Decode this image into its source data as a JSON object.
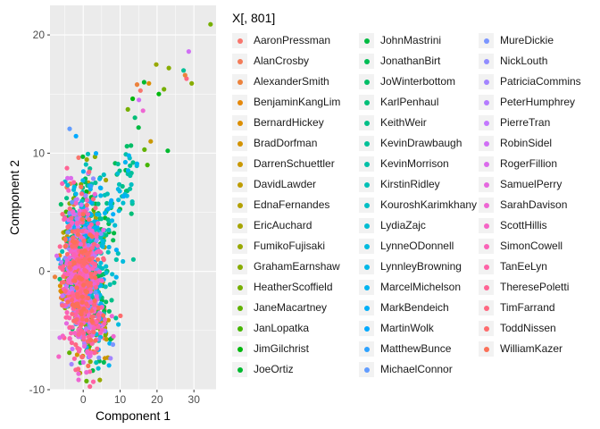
{
  "chart_data": {
    "type": "scatter",
    "xlabel": "Component 1",
    "ylabel": "Component 2",
    "xlim": [
      -9,
      36
    ],
    "ylim": [
      -10,
      22.5
    ],
    "x_ticks": [
      0,
      10,
      20,
      30
    ],
    "y_ticks": [
      -10,
      0,
      10,
      20
    ],
    "grid": true,
    "legend_title": "X[, 801]",
    "legend_position": "right",
    "series": [
      {
        "name": "AaronPressman",
        "color": "#F8766D"
      },
      {
        "name": "AlanCrosby",
        "color": "#F37C59"
      },
      {
        "name": "AlexanderSmith",
        "color": "#EC823C"
      },
      {
        "name": "BenjaminKangLim",
        "color": "#E5880A"
      },
      {
        "name": "BernardHickey",
        "color": "#DC8E00"
      },
      {
        "name": "BradDorfman",
        "color": "#D39200"
      },
      {
        "name": "DarrenSchuettler",
        "color": "#C99800"
      },
      {
        "name": "DavidLawder",
        "color": "#BE9C00"
      },
      {
        "name": "EdnaFernandes",
        "color": "#B3A000"
      },
      {
        "name": "EricAuchard",
        "color": "#A6A400"
      },
      {
        "name": "FumikoFujisaki",
        "color": "#98A800"
      },
      {
        "name": "GrahamEarnshaw",
        "color": "#88AC00"
      },
      {
        "name": "HeatherScoffield",
        "color": "#76AF00"
      },
      {
        "name": "JaneMacartney",
        "color": "#61B200"
      },
      {
        "name": "JanLopatka",
        "color": "#45B500"
      },
      {
        "name": "JimGilchrist",
        "color": "#00B70C"
      },
      {
        "name": "JoeOrtiz",
        "color": "#00B92E"
      },
      {
        "name": "JohnMastrini",
        "color": "#00BA42"
      },
      {
        "name": "JonathanBirt",
        "color": "#00BC55"
      },
      {
        "name": "JoWinterbottom",
        "color": "#00BD66"
      },
      {
        "name": "KarlPenhaul",
        "color": "#00BE77"
      },
      {
        "name": "KeithWeir",
        "color": "#00BF87"
      },
      {
        "name": "KevinDrawbaugh",
        "color": "#00C097"
      },
      {
        "name": "KevinMorrison",
        "color": "#00C0A7"
      },
      {
        "name": "KirstinRidley",
        "color": "#00C0B6"
      },
      {
        "name": "KouroshKarimkhany",
        "color": "#00BFC4"
      },
      {
        "name": "LydiaZajc",
        "color": "#00BDD1"
      },
      {
        "name": "LynneODonnell",
        "color": "#00BBDE"
      },
      {
        "name": "LynnleyBrowning",
        "color": "#00B8E7"
      },
      {
        "name": "MarcelMichelson",
        "color": "#00B4F0"
      },
      {
        "name": "MarkBendeich",
        "color": "#00AFF8"
      },
      {
        "name": "MartinWolk",
        "color": "#00A9FF"
      },
      {
        "name": "MatthewBunce",
        "color": "#2EA2FF"
      },
      {
        "name": "MichaelConnor",
        "color": "#619CFF"
      },
      {
        "name": "MureDickie",
        "color": "#7B95FF"
      },
      {
        "name": "NickLouth",
        "color": "#918DFF"
      },
      {
        "name": "PatriciaCommins",
        "color": "#A385FF"
      },
      {
        "name": "PeterHumphrey",
        "color": "#B47CFF"
      },
      {
        "name": "PierreTran",
        "color": "#C377FF"
      },
      {
        "name": "RobinSidel",
        "color": "#D06FF5"
      },
      {
        "name": "RogerFillion",
        "color": "#DB6BEB"
      },
      {
        "name": "SamuelPerry",
        "color": "#E568DF"
      },
      {
        "name": "SarahDavison",
        "color": "#EE66D3"
      },
      {
        "name": "ScottHillis",
        "color": "#F564C5"
      },
      {
        "name": "SimonCowell",
        "color": "#FA62B6"
      },
      {
        "name": "TanEeLyn",
        "color": "#FE62A6"
      },
      {
        "name": "TheresePoletti",
        "color": "#FF6494"
      },
      {
        "name": "TimFarrand",
        "color": "#FF6881"
      },
      {
        "name": "ToddNissen",
        "color": "#FE6C6D"
      },
      {
        "name": "WilliamKazer",
        "color": "#FB7058"
      }
    ],
    "outlier_points": [
      {
        "x": 34.5,
        "y": 20.9,
        "series": "HeatherScoffield"
      },
      {
        "x": 28.6,
        "y": 18.6,
        "series": "RobinSidel"
      },
      {
        "x": 27.2,
        "y": 17.0,
        "series": "KevinDrawbaugh"
      },
      {
        "x": 28.0,
        "y": 16.3,
        "series": "TimFarrand"
      },
      {
        "x": 29.4,
        "y": 15.9,
        "series": "GrahamEarnshaw"
      },
      {
        "x": 27.6,
        "y": 16.6,
        "series": "AlexanderSmith"
      },
      {
        "x": 23.2,
        "y": 17.2,
        "series": "GrahamEarnshaw"
      },
      {
        "x": 21.9,
        "y": 15.4,
        "series": "HeatherScoffield"
      },
      {
        "x": 20.5,
        "y": 15.0,
        "series": "JimGilchrist"
      },
      {
        "x": 19.8,
        "y": 17.5,
        "series": "FumikoFujisaki"
      },
      {
        "x": 17.8,
        "y": 15.9,
        "series": "BernardHickey"
      },
      {
        "x": 16.5,
        "y": 16.0,
        "series": "JoeOrtiz"
      },
      {
        "x": 15.5,
        "y": 15.3,
        "series": "AaronPressman"
      },
      {
        "x": 14.6,
        "y": 15.8,
        "series": "AlexanderSmith"
      },
      {
        "x": 15.1,
        "y": 14.5,
        "series": "RobinSidel"
      },
      {
        "x": 16.2,
        "y": 13.6,
        "series": "SarahDavison"
      },
      {
        "x": 13.4,
        "y": 14.6,
        "series": "JimGilchrist"
      },
      {
        "x": 14.0,
        "y": 13.0,
        "series": "KarlPenhaul"
      },
      {
        "x": 12.1,
        "y": 13.7,
        "series": "HeatherScoffield"
      },
      {
        "x": 22.9,
        "y": 10.2,
        "series": "JoeOrtiz"
      },
      {
        "x": 18.3,
        "y": 11.0,
        "series": "DarrenSchuettler"
      },
      {
        "x": 16.6,
        "y": 10.3,
        "series": "JaneMacartney"
      },
      {
        "x": 17.4,
        "y": 9.0,
        "series": "JanLopatka"
      }
    ]
  }
}
